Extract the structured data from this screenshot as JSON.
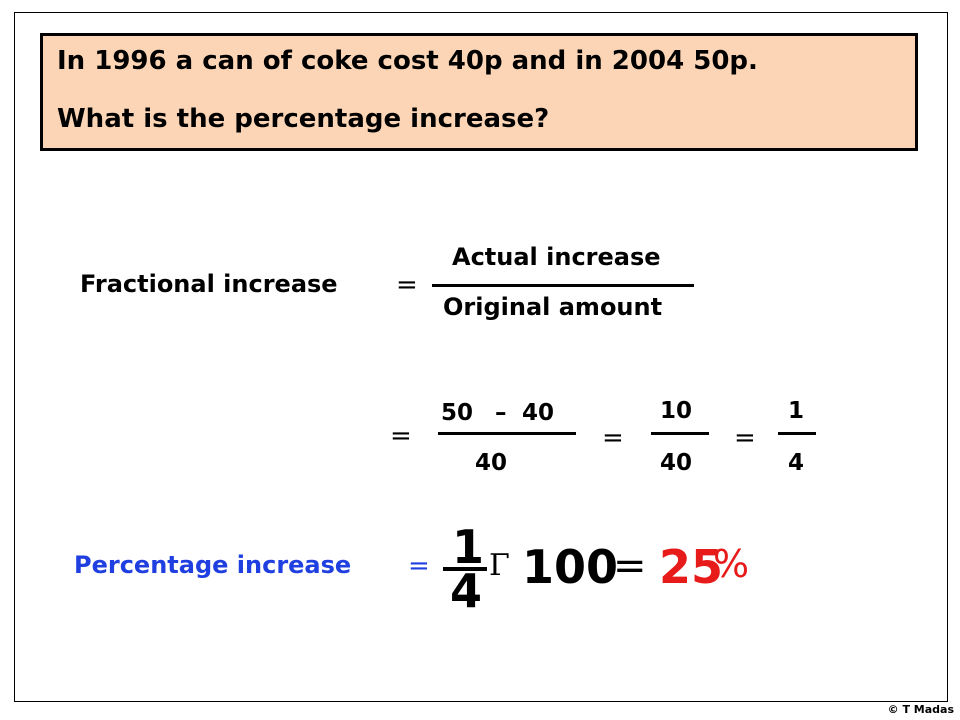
{
  "question": {
    "line1": "In 1996 a can of coke cost 40p and in 2004  50p.",
    "line2": "What is the percentage increase?"
  },
  "formula": {
    "label": "Fractional increase",
    "equals": "=",
    "numerator": "Actual increase",
    "denominator": "Original amount"
  },
  "working": {
    "step1_equals": "=",
    "step1_num_a": "50",
    "step1_minus": "–",
    "step1_num_b": "40",
    "step1_den": "40",
    "step2_equals": "=",
    "step2_num": "10",
    "step2_den": "40",
    "step3_equals": "=",
    "step3_num": "1",
    "step3_den": "4"
  },
  "result": {
    "label": "Percentage increase",
    "equals": "=",
    "frac_num": "1",
    "frac_den": "4",
    "times_symbol": "Γ",
    "multiplier": "100",
    "equals2": "=",
    "answer": "25",
    "percent": "%",
    "label_color": "#1f3fe0",
    "answer_color": "#e81b1b"
  },
  "copyright": "© T Madas"
}
